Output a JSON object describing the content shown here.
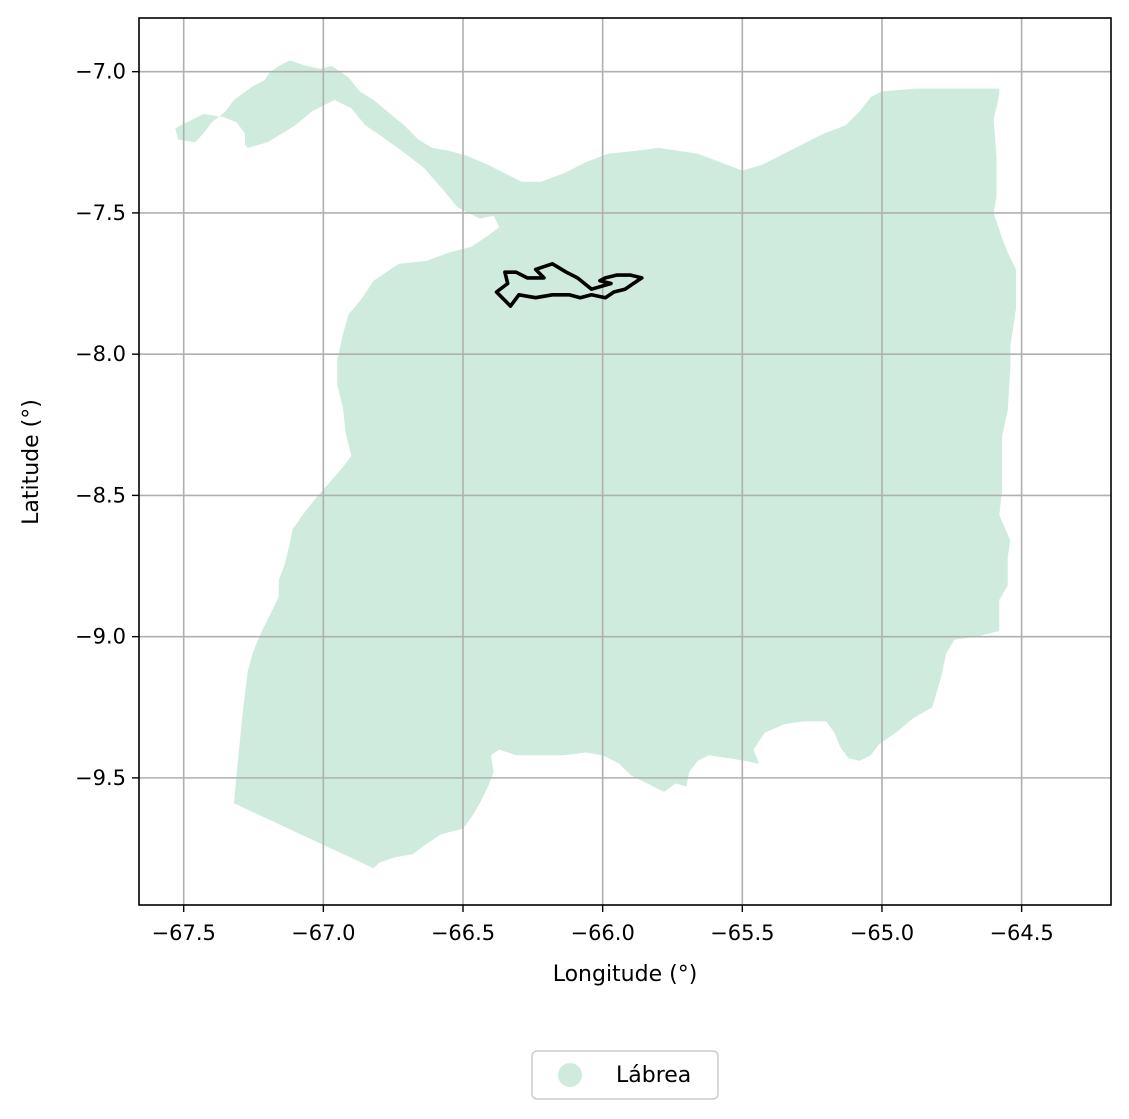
{
  "map": {
    "xlabel": "Longitude (°)",
    "ylabel": "Latitude (°)",
    "xlim": [
      -67.66,
      -64.18
    ],
    "ylim": [
      -9.95,
      -6.81
    ],
    "x_ticks": [
      -67.5,
      -67.0,
      -66.5,
      -66.0,
      -65.5,
      -65.0,
      -64.5
    ],
    "x_tick_labels": [
      "−67.5",
      "−67.0",
      "−66.5",
      "−66.0",
      "−65.5",
      "−65.0",
      "−64.5"
    ],
    "y_ticks": [
      -7.0,
      -7.5,
      -8.0,
      -8.5,
      -9.0,
      -9.5
    ],
    "y_tick_labels": [
      "−7.0",
      "−7.5",
      "−8.0",
      "−8.5",
      "−9.0",
      "−9.5"
    ],
    "grid": true,
    "legend_position": "bottom-center",
    "colors": {
      "region_fill": "#cfebdd",
      "outline_stroke": "#000000",
      "grid": "#b0b0b0",
      "axes": "#000000"
    }
  },
  "legend": {
    "items": [
      {
        "label": "Lábrea",
        "color": "#cfebdd"
      }
    ]
  },
  "chart_data": {
    "type": "map",
    "xlabel": "Longitude (°)",
    "ylabel": "Latitude (°)",
    "xlim": [
      -67.66,
      -64.18
    ],
    "ylim": [
      -9.95,
      -6.81
    ],
    "grid": true,
    "legend": [
      "Lábrea"
    ],
    "regions": [
      {
        "name": "Lábrea",
        "fill": "#cfebdd",
        "coords": [
          [
            -67.32,
            -9.59
          ],
          [
            -66.82,
            -9.82
          ],
          [
            -66.8,
            -9.8
          ],
          [
            -66.74,
            -9.78
          ],
          [
            -66.68,
            -9.77
          ],
          [
            -66.64,
            -9.74
          ],
          [
            -66.58,
            -9.7
          ],
          [
            -66.5,
            -9.68
          ],
          [
            -66.47,
            -9.64
          ],
          [
            -66.44,
            -9.59
          ],
          [
            -66.41,
            -9.53
          ],
          [
            -66.39,
            -9.48
          ],
          [
            -66.4,
            -9.42
          ],
          [
            -66.37,
            -9.4
          ],
          [
            -66.31,
            -9.42
          ],
          [
            -66.23,
            -9.42
          ],
          [
            -66.14,
            -9.42
          ],
          [
            -66.06,
            -9.41
          ],
          [
            -66.0,
            -9.42
          ],
          [
            -65.94,
            -9.45
          ],
          [
            -65.9,
            -9.49
          ],
          [
            -65.84,
            -9.52
          ],
          [
            -65.78,
            -9.55
          ],
          [
            -65.74,
            -9.52
          ],
          [
            -65.7,
            -9.53
          ],
          [
            -65.69,
            -9.48
          ],
          [
            -65.66,
            -9.44
          ],
          [
            -65.62,
            -9.42
          ],
          [
            -65.55,
            -9.43
          ],
          [
            -65.49,
            -9.44
          ],
          [
            -65.44,
            -9.45
          ],
          [
            -65.46,
            -9.4
          ],
          [
            -65.42,
            -9.34
          ],
          [
            -65.35,
            -9.31
          ],
          [
            -65.28,
            -9.3
          ],
          [
            -65.2,
            -9.3
          ],
          [
            -65.17,
            -9.34
          ],
          [
            -65.15,
            -9.39
          ],
          [
            -65.12,
            -9.43
          ],
          [
            -65.08,
            -9.44
          ],
          [
            -65.04,
            -9.42
          ],
          [
            -65.01,
            -9.38
          ],
          [
            -64.95,
            -9.34
          ],
          [
            -64.89,
            -9.29
          ],
          [
            -64.82,
            -9.25
          ],
          [
            -64.79,
            -9.15
          ],
          [
            -64.77,
            -9.06
          ],
          [
            -64.74,
            -9.01
          ],
          [
            -64.66,
            -9.0
          ],
          [
            -64.58,
            -8.98
          ],
          [
            -64.58,
            -8.87
          ],
          [
            -64.55,
            -8.82
          ],
          [
            -64.55,
            -8.72
          ],
          [
            -64.54,
            -8.66
          ],
          [
            -64.58,
            -8.57
          ],
          [
            -64.57,
            -8.48
          ],
          [
            -64.57,
            -8.29
          ],
          [
            -64.55,
            -8.2
          ],
          [
            -64.54,
            -8.05
          ],
          [
            -64.54,
            -7.97
          ],
          [
            -64.52,
            -7.84
          ],
          [
            -64.52,
            -7.7
          ],
          [
            -64.55,
            -7.64
          ],
          [
            -64.57,
            -7.59
          ],
          [
            -64.6,
            -7.5
          ],
          [
            -64.59,
            -7.44
          ],
          [
            -64.59,
            -7.3
          ],
          [
            -64.6,
            -7.17
          ],
          [
            -64.58,
            -7.08
          ],
          [
            -64.58,
            -7.06
          ],
          [
            -64.88,
            -7.06
          ],
          [
            -65.0,
            -7.07
          ],
          [
            -65.04,
            -7.09
          ],
          [
            -65.08,
            -7.14
          ],
          [
            -65.13,
            -7.19
          ],
          [
            -65.21,
            -7.22
          ],
          [
            -65.29,
            -7.26
          ],
          [
            -65.37,
            -7.3
          ],
          [
            -65.43,
            -7.33
          ],
          [
            -65.5,
            -7.35
          ],
          [
            -65.58,
            -7.32
          ],
          [
            -65.66,
            -7.29
          ],
          [
            -65.73,
            -7.28
          ],
          [
            -65.8,
            -7.27
          ],
          [
            -65.88,
            -7.28
          ],
          [
            -65.98,
            -7.29
          ],
          [
            -66.06,
            -7.32
          ],
          [
            -66.14,
            -7.36
          ],
          [
            -66.22,
            -7.39
          ],
          [
            -66.29,
            -7.39
          ],
          [
            -66.35,
            -7.36
          ],
          [
            -66.41,
            -7.33
          ],
          [
            -66.48,
            -7.3
          ],
          [
            -66.55,
            -7.28
          ],
          [
            -66.61,
            -7.27
          ],
          [
            -66.66,
            -7.24
          ],
          [
            -66.71,
            -7.19
          ],
          [
            -66.76,
            -7.15
          ],
          [
            -66.82,
            -7.1
          ],
          [
            -66.87,
            -7.07
          ],
          [
            -66.91,
            -7.02
          ],
          [
            -66.97,
            -6.98
          ],
          [
            -67.01,
            -6.99
          ],
          [
            -67.06,
            -6.98
          ],
          [
            -67.12,
            -6.96
          ],
          [
            -67.16,
            -6.98
          ],
          [
            -67.19,
            -7.0
          ],
          [
            -67.21,
            -7.03
          ],
          [
            -67.25,
            -7.05
          ],
          [
            -67.32,
            -7.1
          ],
          [
            -67.35,
            -7.14
          ],
          [
            -67.4,
            -7.18
          ],
          [
            -67.43,
            -7.22
          ],
          [
            -67.46,
            -7.25
          ],
          [
            -67.52,
            -7.24
          ],
          [
            -67.53,
            -7.2
          ],
          [
            -67.47,
            -7.17
          ],
          [
            -67.43,
            -7.15
          ],
          [
            -67.36,
            -7.16
          ],
          [
            -67.31,
            -7.18
          ],
          [
            -67.28,
            -7.22
          ],
          [
            -67.28,
            -7.26
          ],
          [
            -67.27,
            -7.27
          ],
          [
            -67.2,
            -7.25
          ],
          [
            -67.1,
            -7.19
          ],
          [
            -67.04,
            -7.14
          ],
          [
            -66.96,
            -7.1
          ],
          [
            -66.9,
            -7.13
          ],
          [
            -66.85,
            -7.19
          ],
          [
            -66.79,
            -7.23
          ],
          [
            -66.72,
            -7.28
          ],
          [
            -66.64,
            -7.34
          ],
          [
            -66.57,
            -7.42
          ],
          [
            -66.52,
            -7.48
          ],
          [
            -66.44,
            -7.52
          ],
          [
            -66.39,
            -7.51
          ],
          [
            -66.37,
            -7.55
          ],
          [
            -66.41,
            -7.58
          ],
          [
            -66.47,
            -7.62
          ],
          [
            -66.55,
            -7.64
          ],
          [
            -66.63,
            -7.67
          ],
          [
            -66.73,
            -7.68
          ],
          [
            -66.82,
            -7.74
          ],
          [
            -66.86,
            -7.8
          ],
          [
            -66.91,
            -7.86
          ],
          [
            -66.93,
            -7.93
          ],
          [
            -66.95,
            -8.02
          ],
          [
            -66.95,
            -8.11
          ],
          [
            -66.93,
            -8.19
          ],
          [
            -66.92,
            -8.28
          ],
          [
            -66.9,
            -8.36
          ],
          [
            -66.93,
            -8.4
          ],
          [
            -67.01,
            -8.49
          ],
          [
            -67.06,
            -8.55
          ],
          [
            -67.11,
            -8.62
          ],
          [
            -67.12,
            -8.67
          ],
          [
            -67.14,
            -8.75
          ],
          [
            -67.16,
            -8.8
          ],
          [
            -67.16,
            -8.86
          ],
          [
            -67.2,
            -8.94
          ],
          [
            -67.22,
            -8.98
          ],
          [
            -67.25,
            -9.05
          ],
          [
            -67.27,
            -9.12
          ],
          [
            -67.28,
            -9.2
          ],
          [
            -67.29,
            -9.28
          ],
          [
            -67.3,
            -9.38
          ],
          [
            -67.31,
            -9.48
          ],
          [
            -67.32,
            -9.59
          ]
        ]
      }
    ],
    "outlines": [
      {
        "stroke": "#000000",
        "coords": [
          [
            -66.38,
            -7.78
          ],
          [
            -66.33,
            -7.83
          ],
          [
            -66.3,
            -7.79
          ],
          [
            -66.24,
            -7.8
          ],
          [
            -66.18,
            -7.79
          ],
          [
            -66.12,
            -7.79
          ],
          [
            -66.08,
            -7.8
          ],
          [
            -66.04,
            -7.79
          ],
          [
            -65.99,
            -7.8
          ],
          [
            -65.96,
            -7.78
          ],
          [
            -65.92,
            -7.77
          ],
          [
            -65.89,
            -7.75
          ],
          [
            -65.86,
            -7.73
          ],
          [
            -65.9,
            -7.72
          ],
          [
            -65.95,
            -7.72
          ],
          [
            -65.99,
            -7.73
          ],
          [
            -66.01,
            -7.74
          ],
          [
            -65.97,
            -7.75
          ],
          [
            -66.04,
            -7.77
          ],
          [
            -66.09,
            -7.73
          ],
          [
            -66.13,
            -7.71
          ],
          [
            -66.18,
            -7.68
          ],
          [
            -66.24,
            -7.7
          ],
          [
            -66.21,
            -7.73
          ],
          [
            -66.27,
            -7.73
          ],
          [
            -66.31,
            -7.71
          ],
          [
            -66.35,
            -7.71
          ],
          [
            -66.34,
            -7.75
          ],
          [
            -66.38,
            -7.78
          ]
        ]
      }
    ]
  }
}
